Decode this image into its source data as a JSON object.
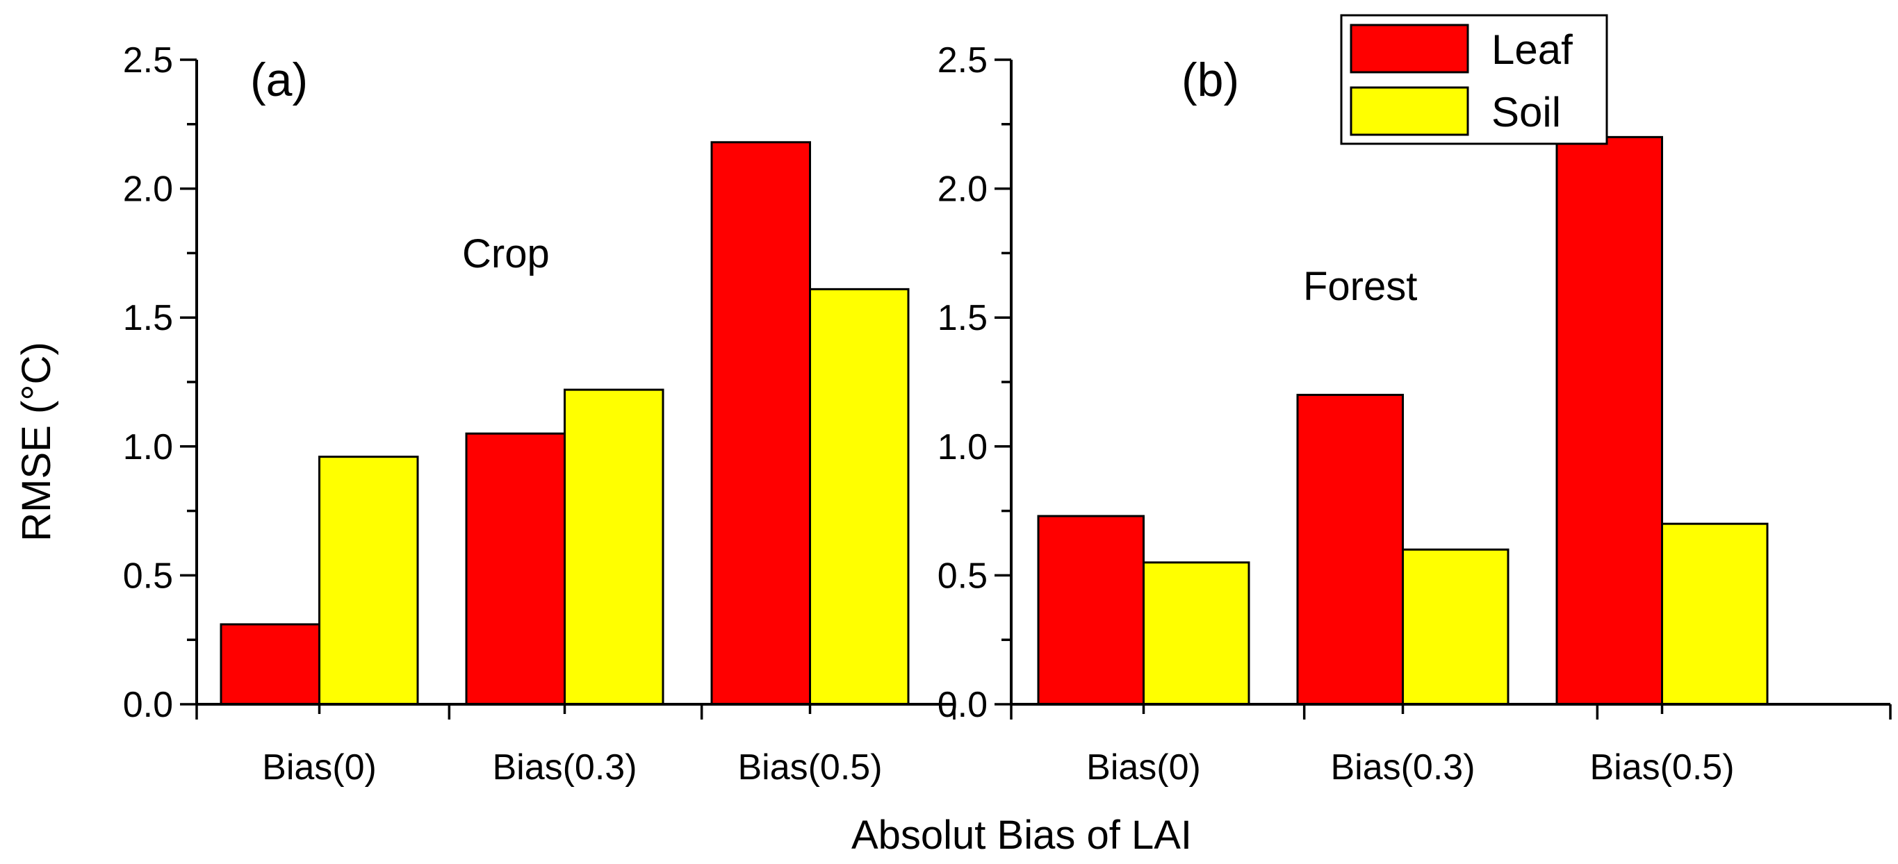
{
  "figure": {
    "ylabel": "RMSE (°C)",
    "xlabel": "Absolut Bias of LAI",
    "legend": [
      {
        "label": "Leaf",
        "color": "#ff0000"
      },
      {
        "label": "Soil",
        "color": "#ffff00"
      }
    ],
    "legend_position": "top-right"
  },
  "chart_data": [
    {
      "type": "bar",
      "panel": "(a)",
      "annotation": "Crop",
      "categories": [
        "Bias(0)",
        "Bias(0.3)",
        "Bias(0.5)"
      ],
      "series": [
        {
          "name": "Leaf",
          "color": "#ff0000",
          "values": [
            0.31,
            1.05,
            2.18
          ]
        },
        {
          "name": "Soil",
          "color": "#ffff00",
          "values": [
            0.96,
            1.22,
            1.61
          ]
        }
      ],
      "ylim": [
        0,
        2.5
      ],
      "yticks": [
        "0.0",
        "0.5",
        "1.0",
        "1.5",
        "2.0",
        "2.5"
      ],
      "ylabel": "RMSE (°C)"
    },
    {
      "type": "bar",
      "panel": "(b)",
      "annotation": "Forest",
      "categories": [
        "Bias(0)",
        "Bias(0.3)",
        "Bias(0.5)"
      ],
      "series": [
        {
          "name": "Leaf",
          "color": "#ff0000",
          "values": [
            0.73,
            1.2,
            2.2
          ]
        },
        {
          "name": "Soil",
          "color": "#ffff00",
          "values": [
            0.55,
            0.6,
            0.7
          ]
        }
      ],
      "ylim": [
        0,
        2.5
      ],
      "yticks": [
        "0.0",
        "0.5",
        "1.0",
        "1.5",
        "2.0",
        "2.5"
      ],
      "ylabel": ""
    }
  ]
}
